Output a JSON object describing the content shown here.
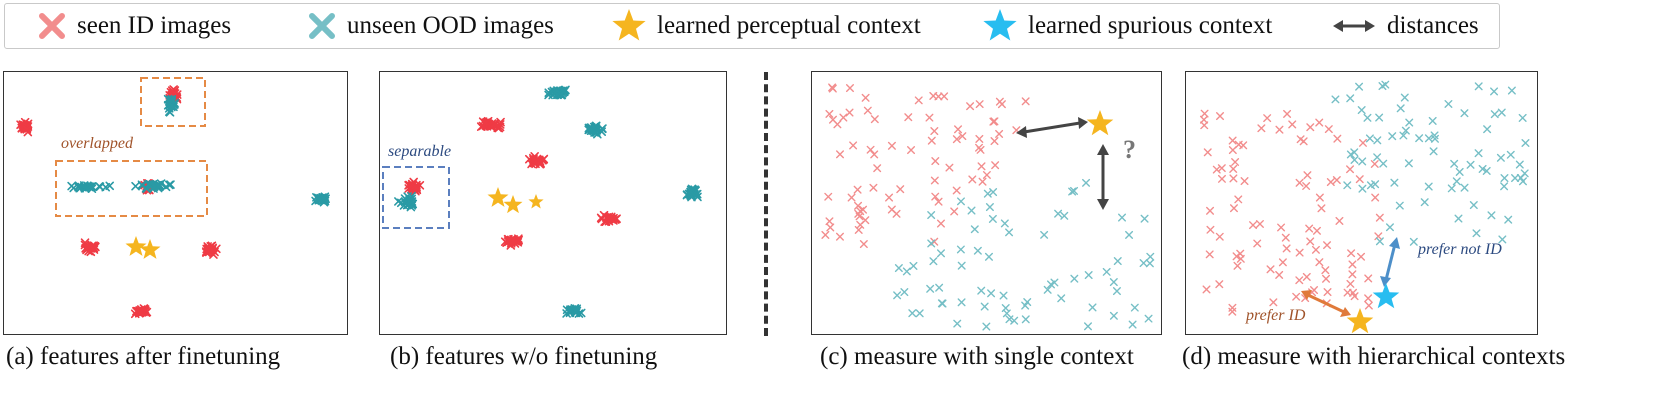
{
  "legend": {
    "seen_id": "seen ID images",
    "unseen_ood": "unseen OOD images",
    "perceptual": "learned perceptual context",
    "spurious": "learned spurious context",
    "distances": "distances"
  },
  "colors": {
    "id": "#f28d8d",
    "ood": "#76bfc6",
    "id_dense": "#ef3b45",
    "ood_dense": "#2a9aa5",
    "perceptual_star": "#f5b51f",
    "spurious_star": "#28bdf0",
    "distance_arrow": "#444444",
    "prefer_id_arrow": "#e07a3a",
    "prefer_not_id_arrow": "#4d8fc9",
    "overlap_box": "#e58a45",
    "separable_box": "#5b7fbf"
  },
  "panels": {
    "a": {
      "caption": "(a) features after finetuning",
      "annotation": "overlapped"
    },
    "b": {
      "caption": "(b) features w/o finetuning",
      "annotation": "separable"
    },
    "c": {
      "caption": "(c) measure with single context",
      "question": "?"
    },
    "d": {
      "caption": "(d) measure with hierarchical contexts",
      "prefer_id": "prefer ID",
      "prefer_not_id": "prefer not ID"
    }
  }
}
